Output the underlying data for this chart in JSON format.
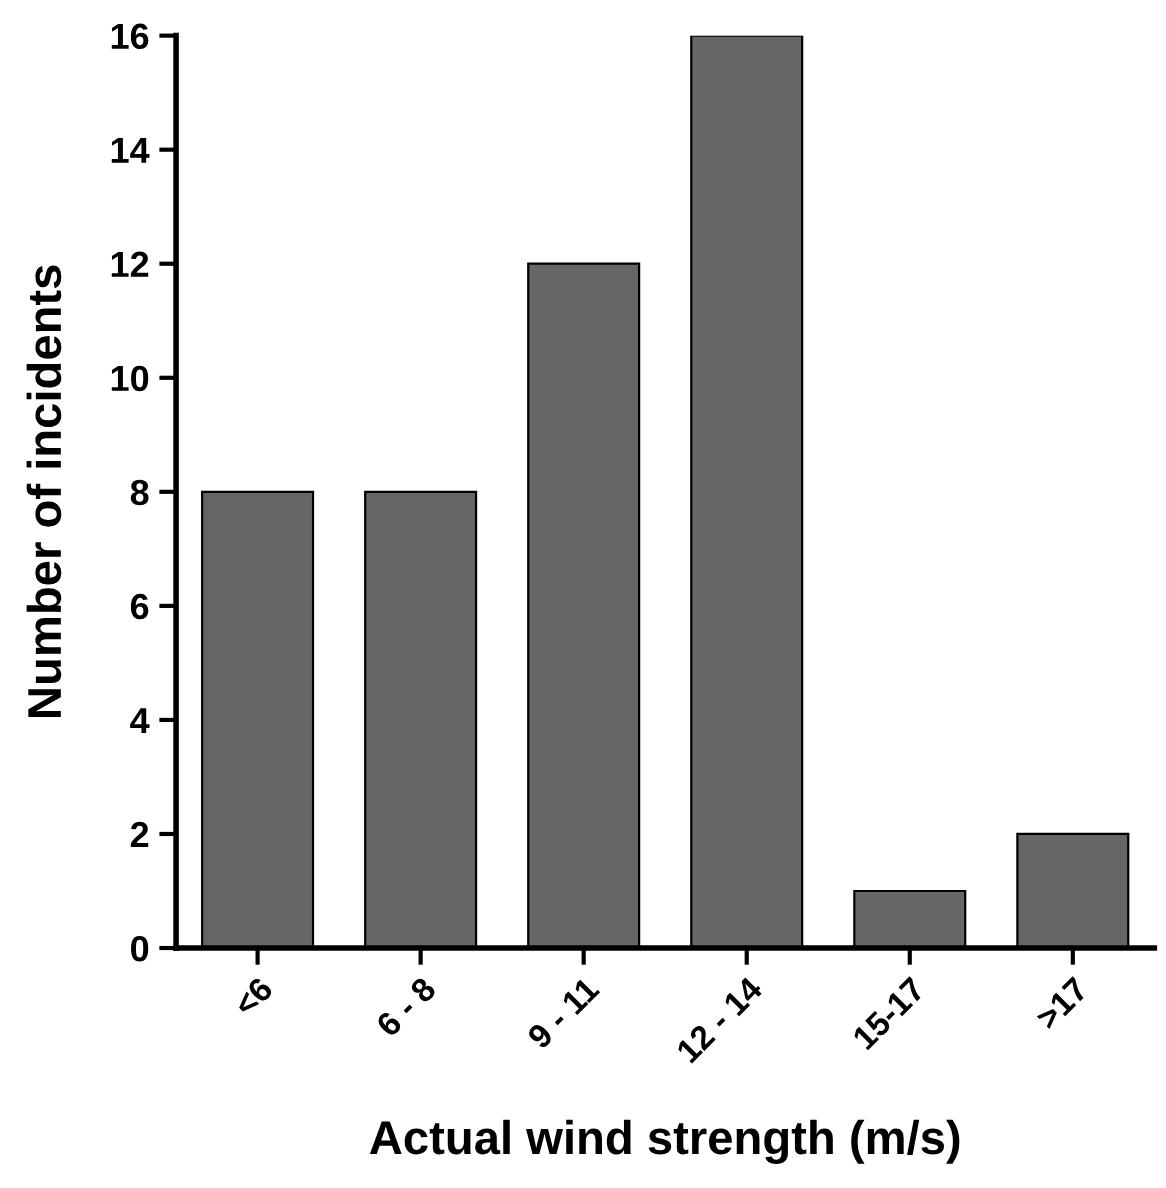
{
  "chart_data": {
    "type": "bar",
    "xlabel": "Actual wind strength (m/s)",
    "ylabel": "Number of incidents",
    "categories": [
      "<6",
      "6 - 8",
      "9 - 11",
      "12 - 14",
      "15-17",
      ">17"
    ],
    "values": [
      8,
      8,
      12,
      16,
      1,
      2
    ],
    "color": "#666666",
    "ylim": [
      0,
      16
    ],
    "yticks": [
      0,
      2,
      4,
      6,
      8,
      10,
      12,
      14,
      16
    ],
    "grid": false
  }
}
